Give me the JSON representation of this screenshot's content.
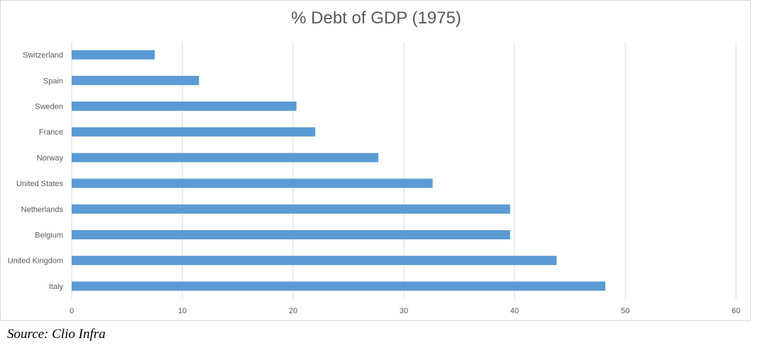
{
  "chart_data": {
    "type": "bar",
    "orientation": "horizontal",
    "title": "% Debt of GDP (1975)",
    "xlabel": "",
    "ylabel": "",
    "categories": [
      "Switzerland",
      "Spain",
      "Sweden",
      "France",
      "Norway",
      "United States",
      "Netherlands",
      "Belgium",
      "United Kingdom",
      "Italy"
    ],
    "values": [
      7.5,
      11.5,
      20.3,
      22.0,
      27.7,
      32.6,
      39.6,
      39.6,
      43.8,
      48.2
    ],
    "xlim": [
      0,
      60
    ],
    "xticks": [
      0,
      10,
      20,
      30,
      40,
      50,
      60
    ],
    "grid": "vertical",
    "legend": "none",
    "bar_color": "#5b9bd5",
    "grid_color": "#d9d9d9"
  },
  "source": "Source: Clio Infra"
}
